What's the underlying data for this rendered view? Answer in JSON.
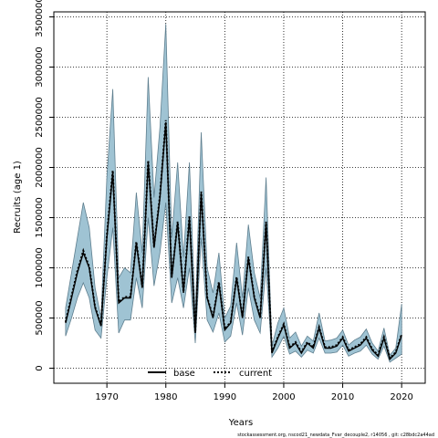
{
  "chart_data": {
    "type": "line",
    "xlabel": "Years",
    "ylabel": "Recruits (age 1)",
    "xlim": [
      1961,
      2024
    ],
    "ylim": [
      -150000,
      3550000
    ],
    "x_ticks": [
      1970,
      1980,
      1990,
      2000,
      2010,
      2020
    ],
    "x_tick_labels": [
      "1970",
      "1980",
      "1990",
      "2000",
      "2010",
      "2020"
    ],
    "y_ticks": [
      0,
      500000,
      1000000,
      1500000,
      2000000,
      2500000,
      3000000,
      3500000
    ],
    "y_tick_labels": [
      "0",
      "500000",
      "1000000",
      "1500000",
      "2000000",
      "2500000",
      "3000000",
      "3500000"
    ],
    "grid": true,
    "legend_position": "bottom-center",
    "colors": {
      "band": "#9fc3d3",
      "band_edge": "#5f7f8f",
      "base": "#000000",
      "current": "#000000"
    },
    "x": [
      1963,
      1964,
      1965,
      1966,
      1967,
      1968,
      1969,
      1970,
      1971,
      1972,
      1973,
      1974,
      1975,
      1976,
      1977,
      1978,
      1979,
      1980,
      1981,
      1982,
      1983,
      1984,
      1985,
      1986,
      1987,
      1988,
      1989,
      1990,
      1991,
      1992,
      1993,
      1994,
      1995,
      1996,
      1997,
      1998,
      1999,
      2000,
      2001,
      2002,
      2003,
      2004,
      2005,
      2006,
      2007,
      2008,
      2009,
      2010,
      2011,
      2012,
      2013,
      2014,
      2015,
      2016,
      2017,
      2018,
      2019,
      2020
    ],
    "series": [
      {
        "name": "base",
        "style": "solid",
        "values": [
          450000,
          700000,
          950000,
          1150000,
          1000000,
          600000,
          420000,
          1300000,
          1950000,
          650000,
          700000,
          700000,
          1250000,
          800000,
          2050000,
          1200000,
          1700000,
          2450000,
          900000,
          1450000,
          750000,
          1500000,
          350000,
          1750000,
          700000,
          500000,
          850000,
          380000,
          450000,
          900000,
          500000,
          1100000,
          700000,
          500000,
          1450000,
          150000,
          300000,
          430000,
          200000,
          250000,
          150000,
          250000,
          200000,
          400000,
          200000,
          200000,
          220000,
          300000,
          170000,
          200000,
          230000,
          300000,
          180000,
          120000,
          300000,
          90000,
          150000,
          330000
        ]
      },
      {
        "name": "current",
        "style": "dotted",
        "values": [
          460000,
          720000,
          970000,
          1170000,
          1010000,
          610000,
          430000,
          1320000,
          1970000,
          660000,
          710000,
          710000,
          1260000,
          810000,
          2070000,
          1210000,
          1720000,
          2470000,
          910000,
          1460000,
          760000,
          1520000,
          360000,
          1760000,
          710000,
          510000,
          860000,
          390000,
          460000,
          910000,
          510000,
          1110000,
          710000,
          510000,
          1460000,
          160000,
          310000,
          440000,
          210000,
          260000,
          160000,
          260000,
          210000,
          410000,
          210000,
          210000,
          230000,
          310000,
          180000,
          210000,
          240000,
          310000,
          190000,
          130000,
          310000,
          100000,
          160000,
          340000
        ]
      }
    ],
    "band_upper": [
      600000,
      950000,
      1300000,
      1650000,
      1400000,
      800000,
      500000,
      1900000,
      2780000,
      900000,
      1000000,
      950000,
      1750000,
      1150000,
      2900000,
      1700000,
      2400000,
      3430000,
      1300000,
      2050000,
      1100000,
      2050000,
      520000,
      2350000,
      1000000,
      750000,
      1150000,
      500000,
      620000,
      1250000,
      700000,
      1430000,
      950000,
      700000,
      1900000,
      220000,
      450000,
      600000,
      300000,
      360000,
      220000,
      320000,
      270000,
      550000,
      270000,
      280000,
      300000,
      380000,
      230000,
      280000,
      310000,
      390000,
      250000,
      170000,
      400000,
      130000,
      200000,
      640000
    ],
    "band_lower": [
      320000,
      500000,
      700000,
      850000,
      700000,
      380000,
      300000,
      900000,
      1400000,
      350000,
      480000,
      480000,
      900000,
      600000,
      1500000,
      820000,
      1150000,
      1650000,
      650000,
      900000,
      600000,
      1000000,
      250000,
      1300000,
      480000,
      360000,
      550000,
      260000,
      320000,
      650000,
      330000,
      800000,
      480000,
      350000,
      1000000,
      110000,
      200000,
      320000,
      140000,
      170000,
      110000,
      180000,
      150000,
      300000,
      150000,
      150000,
      160000,
      230000,
      120000,
      150000,
      170000,
      230000,
      140000,
      90000,
      220000,
      60000,
      100000,
      140000
    ],
    "footnote": "stockassessment.org, nscod21_newdata_Fvar_decouple2, r14056 , git: c28bdc2a44ad"
  }
}
